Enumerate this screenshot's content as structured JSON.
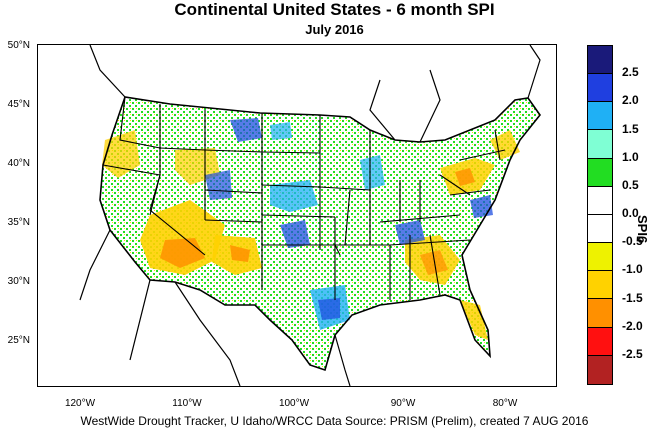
{
  "title": "Continental United States - 6 month SPI",
  "subtitle": "July 2016",
  "credit": "WestWide Drought Tracker, U Idaho/WRCC Data Source: PRISM (Prelim), created  7 AUG 2016",
  "lat_labels": [
    "50°N",
    "45°N",
    "40°N",
    "35°N",
    "30°N",
    "25°N"
  ],
  "lon_labels": [
    "120°W",
    "110°W",
    "100°W",
    "90°W",
    "80°W"
  ],
  "legend": {
    "title": "SPI6",
    "tick_labels": [
      "2.5",
      "2.0",
      "1.5",
      "1.0",
      "0.5",
      "0.0",
      "-0.5",
      "-1.0",
      "-1.5",
      "-2.0",
      "-2.5"
    ],
    "colors": [
      "#1a1a7a",
      "#1f3fe0",
      "#1fb0f5",
      "#7fffd4",
      "#22dd22",
      "#ffffff",
      "#ffffff",
      "#eef200",
      "#ffd200",
      "#ff9000",
      "#ff1010",
      "#b22222"
    ]
  },
  "map": {
    "region": "Continental United States",
    "wet_color": "#22cc33",
    "very_wet_color": "#1fa0f0",
    "extreme_wet_color": "#1f4fe0",
    "dry_color": "#ffd200",
    "very_dry_color": "#ff9000",
    "near_normal_color": "#ffffff"
  }
}
